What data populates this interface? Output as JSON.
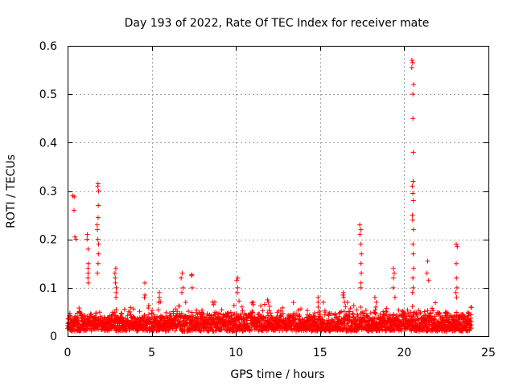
{
  "chart_data": {
    "type": "scatter",
    "title": "Day 193 of 2022, Rate Of TEC Index for receiver mate",
    "xlabel": "GPS time / hours",
    "ylabel": "ROTI / TECUs",
    "xlim": [
      0,
      25
    ],
    "ylim": [
      0,
      0.6
    ],
    "x_ticks": [
      0,
      5,
      10,
      15,
      20,
      25
    ],
    "y_ticks": [
      0,
      0.1,
      0.2,
      0.3,
      0.4,
      0.5,
      0.6
    ],
    "x_tick_labels": [
      "0",
      "5",
      "10",
      "15",
      "20",
      "25"
    ],
    "y_tick_labels": [
      "0",
      "0.1",
      "0.2",
      "0.3",
      "0.4",
      "0.5",
      "0.6"
    ],
    "grid": true,
    "marker": "plus",
    "color": "#ff0000",
    "x_range_of_data": [
      0,
      24
    ],
    "baseline": {
      "typical_min": 0.01,
      "typical_max": 0.05,
      "note_visible": false
    },
    "peaks": [
      {
        "x": 0.35,
        "values": [
          0.29,
          0.288,
          0.26
        ]
      },
      {
        "x": 0.45,
        "values": [
          0.205,
          0.2
        ]
      },
      {
        "x": 1.2,
        "values": [
          0.21,
          0.2,
          0.18,
          0.15,
          0.14,
          0.13,
          0.12,
          0.11
        ]
      },
      {
        "x": 1.8,
        "values": [
          0.315,
          0.31,
          0.3,
          0.27,
          0.245,
          0.23,
          0.22,
          0.2,
          0.19,
          0.17,
          0.15,
          0.13
        ]
      },
      {
        "x": 2.85,
        "values": [
          0.14,
          0.13,
          0.12,
          0.11,
          0.1,
          0.09,
          0.08
        ]
      },
      {
        "x": 4.6,
        "values": [
          0.11,
          0.085,
          0.08
        ]
      },
      {
        "x": 5.4,
        "values": [
          0.09,
          0.08,
          0.07
        ]
      },
      {
        "x": 6.8,
        "values": [
          0.13,
          0.12,
          0.1,
          0.09
        ]
      },
      {
        "x": 7.4,
        "values": [
          0.127,
          0.125,
          0.1
        ]
      },
      {
        "x": 8.7,
        "values": [
          0.07,
          0.065
        ]
      },
      {
        "x": 10.1,
        "values": [
          0.12,
          0.115,
          0.1,
          0.09
        ]
      },
      {
        "x": 11.0,
        "values": [
          0.07,
          0.065
        ]
      },
      {
        "x": 11.9,
        "values": [
          0.075,
          0.07
        ]
      },
      {
        "x": 14.9,
        "values": [
          0.08,
          0.07,
          0.06
        ]
      },
      {
        "x": 16.4,
        "values": [
          0.09,
          0.085,
          0.08,
          0.07
        ]
      },
      {
        "x": 17.4,
        "values": [
          0.23,
          0.22,
          0.21,
          0.19,
          0.17,
          0.15,
          0.13,
          0.11,
          0.1
        ]
      },
      {
        "x": 18.3,
        "values": [
          0.08,
          0.07,
          0.06
        ]
      },
      {
        "x": 19.4,
        "values": [
          0.14,
          0.13,
          0.12,
          0.1,
          0.08
        ]
      },
      {
        "x": 20.5,
        "values": [
          0.57,
          0.565,
          0.555,
          0.52,
          0.5,
          0.45,
          0.38,
          0.32,
          0.31,
          0.295,
          0.28,
          0.25,
          0.24,
          0.22,
          0.19,
          0.17,
          0.14,
          0.12,
          0.1,
          0.09
        ]
      },
      {
        "x": 21.4,
        "values": [
          0.155,
          0.13,
          0.115
        ]
      },
      {
        "x": 23.1,
        "values": [
          0.19,
          0.185,
          0.15,
          0.12,
          0.1,
          0.09,
          0.08
        ]
      }
    ]
  }
}
